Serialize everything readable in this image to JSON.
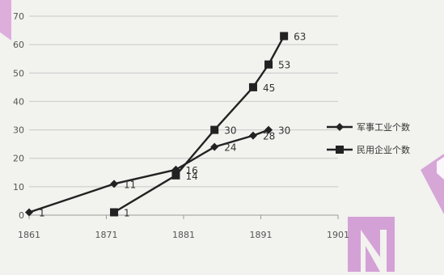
{
  "chart_data": {
    "type": "line",
    "title": "",
    "xlabel": "",
    "ylabel": "",
    "xlim": [
      1861,
      1901
    ],
    "ylim": [
      0,
      70
    ],
    "x_ticks": [
      1861,
      1871,
      1881,
      1891,
      1901
    ],
    "y_ticks": [
      0,
      10,
      20,
      30,
      40,
      50,
      60,
      70
    ],
    "grid": "horizontal",
    "legend_position": "right",
    "series": [
      {
        "name": "军事工业个数",
        "marker": "diamond",
        "color": "#222222",
        "points": [
          {
            "x": 1861,
            "y": 1,
            "label": "1"
          },
          {
            "x": 1872,
            "y": 11,
            "label": "11"
          },
          {
            "x": 1880,
            "y": 16,
            "label": "16"
          },
          {
            "x": 1885,
            "y": 24,
            "label": "24"
          },
          {
            "x": 1890,
            "y": 28,
            "label": "28"
          },
          {
            "x": 1892,
            "y": 30,
            "label": "30"
          }
        ]
      },
      {
        "name": "民用企业个数",
        "marker": "square",
        "color": "#222222",
        "points": [
          {
            "x": 1872,
            "y": 1,
            "label": "1"
          },
          {
            "x": 1880,
            "y": 14,
            "label": "14"
          },
          {
            "x": 1885,
            "y": 30,
            "label": "30"
          },
          {
            "x": 1890,
            "y": 45,
            "label": "45"
          },
          {
            "x": 1892,
            "y": 53,
            "label": "53"
          },
          {
            "x": 1894,
            "y": 63,
            "label": "63"
          }
        ]
      }
    ]
  }
}
